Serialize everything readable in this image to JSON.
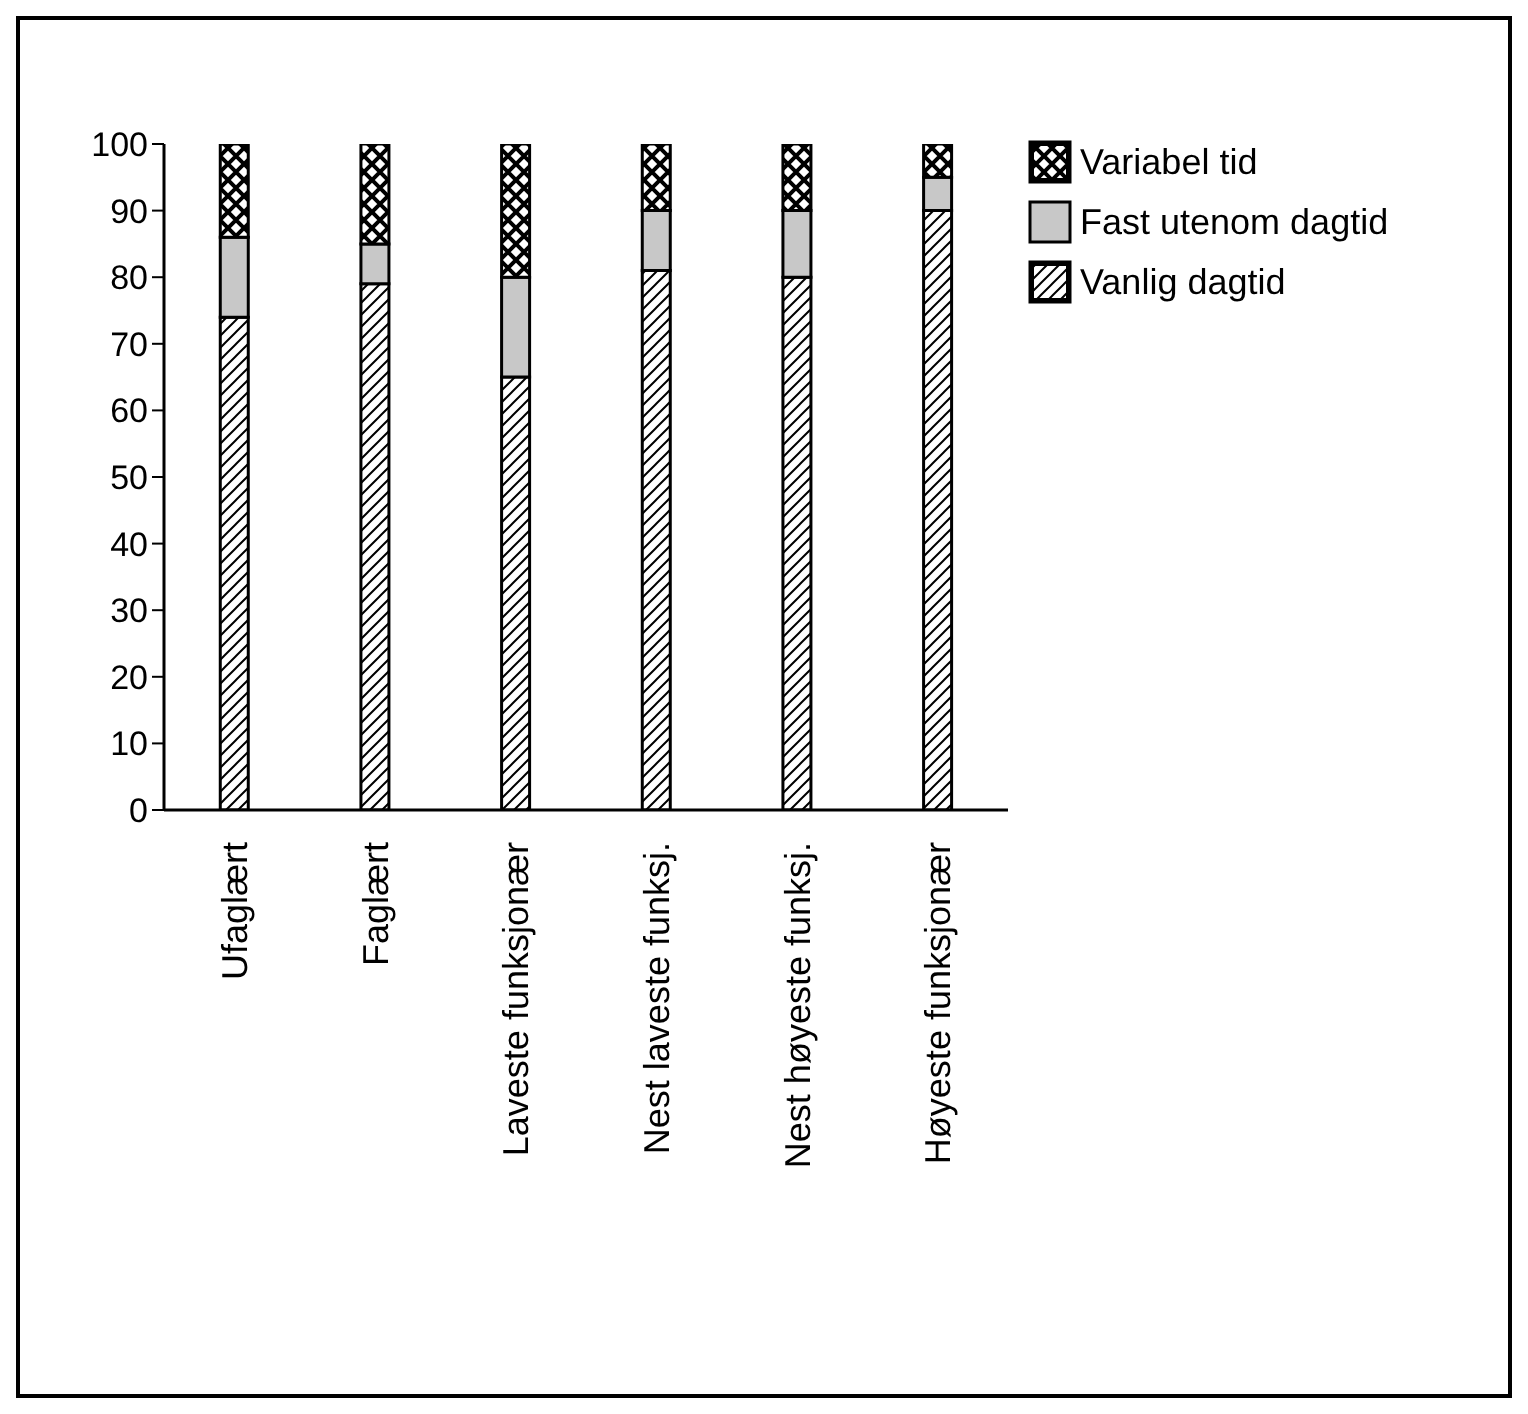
{
  "chart_data": {
    "type": "bar",
    "stacked": true,
    "categories": [
      "Ufaglært",
      "Faglært",
      "Laveste funksjonær",
      "Nest laveste funksj.",
      "Nest høyeste funksj.",
      "Høyeste funksjonær"
    ],
    "series": [
      {
        "name": "Vanlig dagtid",
        "color": "#000000",
        "values": [
          74,
          79,
          65,
          81,
          80,
          90
        ]
      },
      {
        "name": "Fast utenom dagtid",
        "color": "#c8c8c8",
        "values": [
          12,
          6,
          15,
          9,
          10,
          5
        ]
      },
      {
        "name": "Variabel tid",
        "color": "#000000",
        "values": [
          14,
          15,
          20,
          10,
          10,
          5
        ]
      }
    ],
    "ylim": [
      0,
      100
    ],
    "yticks": [
      0,
      10,
      20,
      30,
      40,
      50,
      60,
      70,
      80,
      90,
      100
    ],
    "grid": false,
    "legend": "top right"
  }
}
